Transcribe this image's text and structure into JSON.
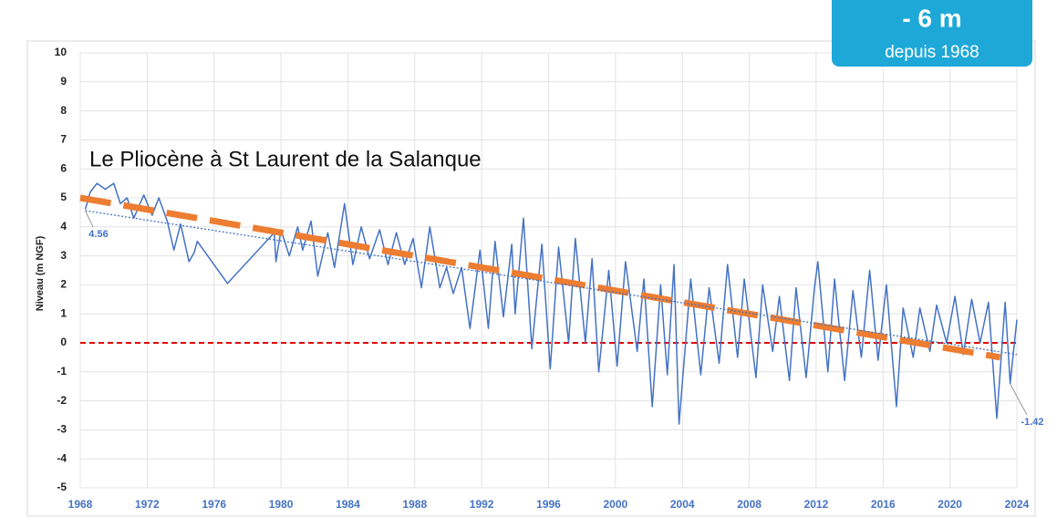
{
  "chart_data": {
    "type": "line",
    "title": "Le Pliocène à St Laurent de la Salanque",
    "y_label": "Niveau (m NGF)",
    "badge": {
      "headline": "- 6 m",
      "caption": "depuis 1968"
    },
    "xlim": [
      1968,
      2024
    ],
    "xticks": [
      1968,
      1972,
      1976,
      1980,
      1984,
      1988,
      1992,
      1996,
      2000,
      2004,
      2008,
      2012,
      2016,
      2020,
      2024
    ],
    "ylim": [
      -5,
      10
    ],
    "yticks": [
      -5,
      -4,
      -3,
      -2,
      -1,
      0,
      1,
      2,
      3,
      4,
      5,
      6,
      7,
      8,
      9,
      10
    ],
    "grid": true,
    "series": [
      {
        "color": "#4472c4",
        "x": [
          1968.3,
          1968.6,
          1969,
          1969.5,
          1970,
          1970.4,
          1970.8,
          1971.2,
          1971.8,
          1972.3,
          1972.7,
          1973.2,
          1973.6,
          1974,
          1974.5,
          1974.8,
          1975,
          1976.8,
          1979.6,
          1979.7,
          1980,
          1980.5,
          1981,
          1981.3,
          1981.8,
          1982.2,
          1982.8,
          1983.2,
          1983.8,
          1984.3,
          1984.8,
          1985.3,
          1985.9,
          1986.4,
          1986.9,
          1987.4,
          1987.9,
          1988.4,
          1988.9,
          1989.5,
          1989.9,
          1990.3,
          1990.8,
          1991.3,
          1991.9,
          1992.4,
          1992.8,
          1993.3,
          1993.8,
          1994.0,
          1994.5,
          1995,
          1995.6,
          1996.1,
          1996.6,
          1997.2,
          1997.6,
          1998.2,
          1998.6,
          1999,
          1999.6,
          2000.1,
          2000.6,
          2001.3,
          2001.7,
          2002.2,
          2002.7,
          2003.1,
          2003.5,
          2003.8,
          2004.5,
          2005.1,
          2005.6,
          2006.2,
          2006.7,
          2007.3,
          2007.7,
          2008.4,
          2008.8,
          2009.4,
          2009.8,
          2010.4,
          2010.8,
          2011.4,
          2011.9,
          2012.1,
          2012.7,
          2013.1,
          2013.7,
          2014.2,
          2014.7,
          2015.2,
          2015.7,
          2016.2,
          2016.8,
          2017.2,
          2017.8,
          2018.2,
          2018.8,
          2019.2,
          2019.8,
          2020.3,
          2020.8,
          2021.3,
          2021.8,
          2022.3,
          2022.8,
          2023.3,
          2023.6,
          2024.0
        ],
        "values": [
          4.6,
          5.2,
          5.5,
          5.3,
          5.5,
          4.8,
          5.0,
          4.3,
          5.1,
          4.4,
          5.0,
          4.2,
          3.2,
          4.1,
          2.8,
          3.1,
          3.5,
          2.05,
          3.8,
          2.8,
          3.9,
          3.0,
          4.0,
          3.2,
          4.2,
          2.3,
          3.8,
          2.6,
          4.8,
          2.7,
          4.0,
          2.9,
          3.9,
          2.7,
          3.8,
          2.7,
          3.6,
          1.9,
          4.0,
          1.9,
          2.6,
          1.7,
          2.6,
          0.5,
          3.2,
          0.5,
          3.5,
          0.9,
          3.4,
          1.0,
          4.3,
          -0.2,
          3.4,
          -0.9,
          3.3,
          0.0,
          3.6,
          0.0,
          2.9,
          -1.0,
          2.5,
          -0.8,
          2.8,
          -0.3,
          2.2,
          -2.2,
          2.0,
          -1.1,
          2.7,
          -2.8,
          2.2,
          -1.1,
          1.9,
          -0.7,
          2.7,
          -0.5,
          2.2,
          -1.2,
          2.0,
          -0.3,
          1.6,
          -1.3,
          1.9,
          -1.2,
          1.9,
          2.8,
          -1.0,
          2.2,
          -1.3,
          1.8,
          -0.5,
          2.5,
          -0.6,
          2.0,
          -2.2,
          1.2,
          -0.5,
          1.2,
          -0.3,
          1.3,
          0.0,
          1.6,
          -0.4,
          1.5,
          0.0,
          1.4,
          -2.6,
          1.4,
          -1.4,
          0.8
        ]
      }
    ],
    "trend_lines": [
      {
        "color": "#ed7d31",
        "style": "dashed",
        "x": [
          1968,
          2023
        ],
        "values": [
          5.0,
          -0.5
        ]
      },
      {
        "color": "#4472c4",
        "style": "dotted",
        "x": [
          1968.3,
          2024
        ],
        "values": [
          4.56,
          -0.4
        ]
      }
    ],
    "reference_line": {
      "value": 0,
      "color": "#e00000"
    },
    "annotations": [
      {
        "text": "4.56",
        "x": 1968.3,
        "y": 4.56
      },
      {
        "text": "-1.42",
        "x": 2023.6,
        "y": -1.42
      }
    ]
  }
}
